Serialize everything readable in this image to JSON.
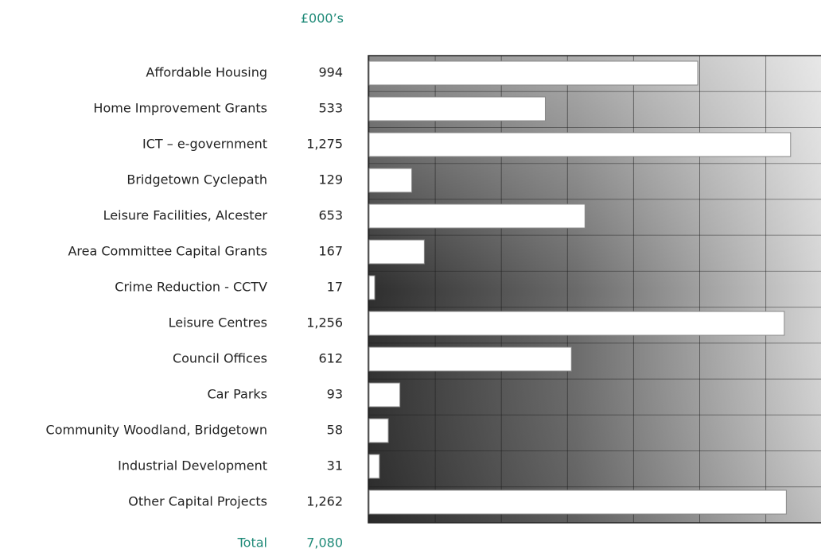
{
  "chart_data": {
    "type": "bar",
    "orientation": "horizontal",
    "unit_label": "£000’s",
    "categories": [
      "Affordable Housing",
      "Home Improvement Grants",
      "ICT – e-government",
      "Bridgetown Cyclepath",
      "Leisure Facilities, Alcester",
      "Area Committee Capital Grants",
      "Crime Reduction - CCTV",
      "Leisure Centres",
      "Council Offices",
      "Car Parks",
      "Community Woodland, Bridgetown",
      "Industrial Development",
      "Other Capital Projects"
    ],
    "values": [
      994,
      533,
      1275,
      129,
      653,
      167,
      17,
      1256,
      612,
      93,
      58,
      31,
      1262
    ],
    "value_labels": [
      "994",
      "533",
      "1,275",
      "129",
      "653",
      "167",
      "17",
      "1,256",
      "612",
      "93",
      "58",
      "31",
      "1,262"
    ],
    "total_label": "Total",
    "total": 7080,
    "total_value_label": "7,080",
    "color": "#ffffff",
    "xlim": [
      0,
      1367
    ],
    "xticks": [
      0,
      200,
      400,
      600,
      800,
      1000,
      1200
    ],
    "grid": true
  }
}
